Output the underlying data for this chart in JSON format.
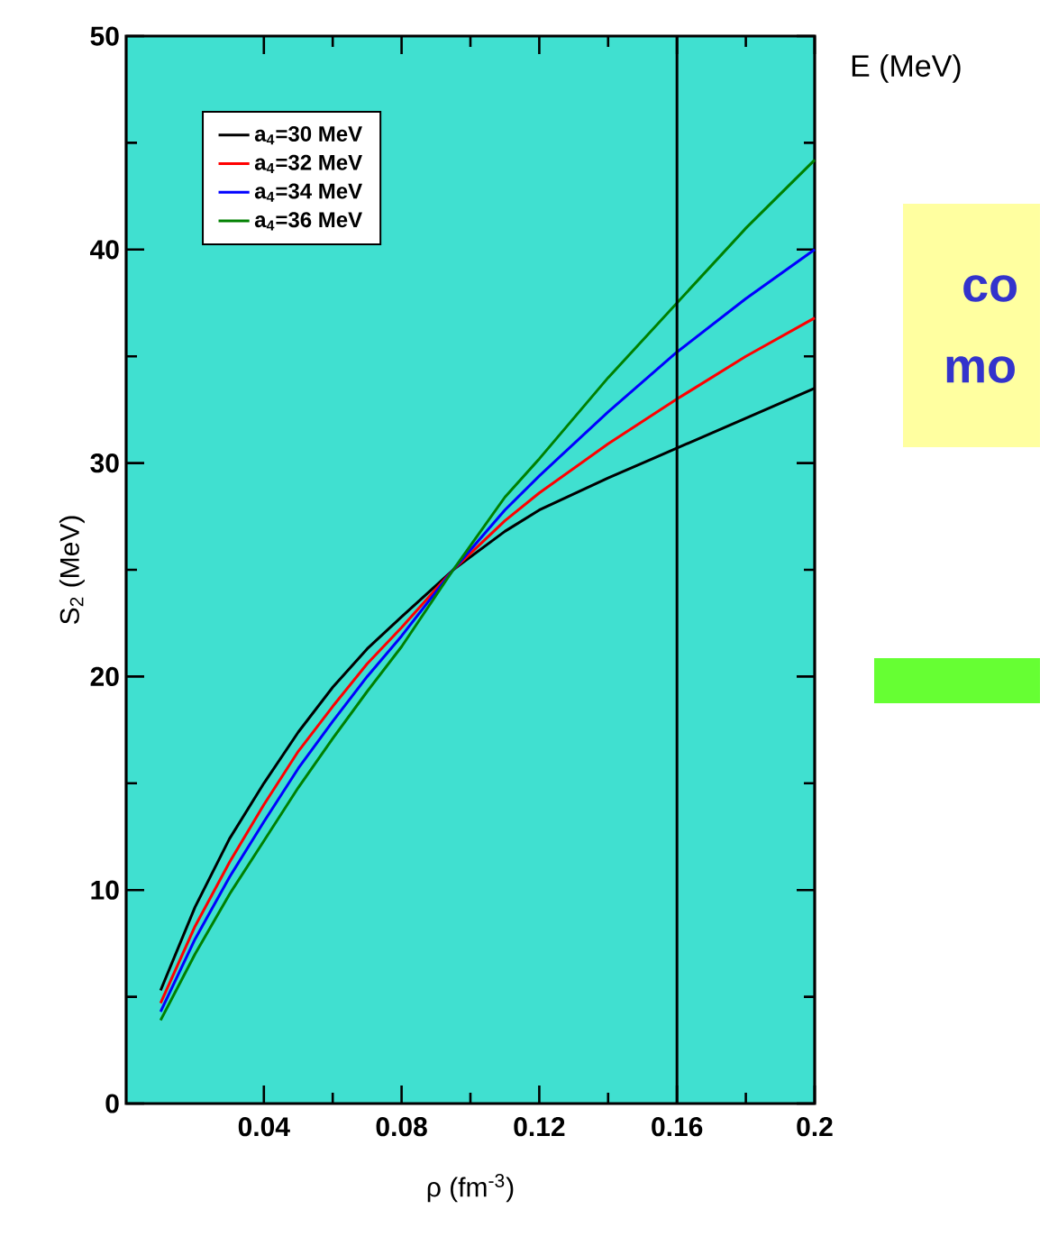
{
  "chart_data": {
    "type": "line",
    "xlabel": "ρ (fm$^{-3}$)",
    "ylabel": "S$_{2}$ (MeV)",
    "xlim": [
      0,
      0.2
    ],
    "ylim": [
      0,
      50
    ],
    "xticks": [
      0.04,
      0.08,
      0.12,
      0.16,
      0.2
    ],
    "yticks": [
      0,
      10,
      20,
      30,
      40,
      50
    ],
    "x": [
      0.01,
      0.02,
      0.03,
      0.04,
      0.05,
      0.06,
      0.07,
      0.08,
      0.095,
      0.11,
      0.12,
      0.14,
      0.16,
      0.18,
      0.2
    ],
    "series": [
      {
        "name": "a$_{4}$=30 MeV",
        "color": "#000000",
        "values": [
          5.3,
          9.2,
          12.4,
          15.0,
          17.4,
          19.5,
          21.3,
          22.8,
          25.0,
          26.8,
          27.8,
          29.3,
          30.7,
          32.1,
          33.5
        ]
      },
      {
        "name": "a$_{4}$=32 MeV",
        "color": "#ff0000",
        "values": [
          4.7,
          8.3,
          11.3,
          14.0,
          16.5,
          18.6,
          20.6,
          22.3,
          25.0,
          27.3,
          28.6,
          30.9,
          33.0,
          35.0,
          36.8
        ]
      },
      {
        "name": "a$_{4}$=34 MeV",
        "color": "#0000ff",
        "values": [
          4.3,
          7.7,
          10.6,
          13.2,
          15.7,
          17.9,
          20.0,
          21.9,
          25.0,
          27.8,
          29.4,
          32.4,
          35.2,
          37.7,
          40.0
        ]
      },
      {
        "name": "a$_{4}$=36 MeV",
        "color": "#008000",
        "values": [
          3.9,
          7.0,
          9.8,
          12.3,
          14.8,
          17.1,
          19.3,
          21.4,
          25.0,
          28.4,
          30.2,
          34.0,
          37.5,
          41.0,
          44.2
        ]
      }
    ],
    "ref_lines": [
      {
        "axis": "x",
        "value": 0.16,
        "color": "#000000"
      }
    ],
    "legend": "top left",
    "grid": false,
    "marker": "none",
    "line_style": "solid",
    "annotations": [
      "E (MeV)",
      "co",
      "mo"
    ]
  }
}
